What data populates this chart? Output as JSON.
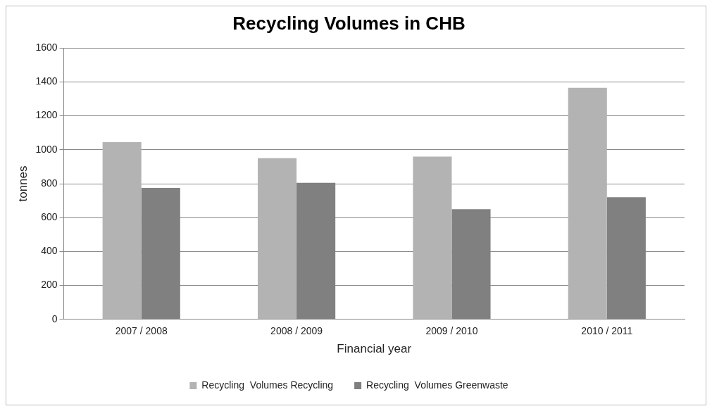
{
  "chart_data": {
    "type": "bar",
    "title": "Recycling Volumes in CHB",
    "xlabel": "Financial year",
    "ylabel": "tonnes",
    "categories": [
      "2007 / 2008",
      "2008 / 2009",
      "2009 / 2010",
      "2010 / 2011"
    ],
    "series": [
      {
        "name": "Recycling  Volumes Recycling",
        "color": "#b3b3b3",
        "values": [
          1045,
          950,
          960,
          1365
        ]
      },
      {
        "name": "Recycling  Volumes Greenwaste",
        "color": "#808080",
        "values": [
          775,
          805,
          650,
          720
        ]
      }
    ],
    "ylim": [
      0,
      1600
    ],
    "yticks": [
      0,
      200,
      400,
      600,
      800,
      1000,
      1200,
      1400,
      1600
    ],
    "grid": "y",
    "legend": "bottom"
  }
}
